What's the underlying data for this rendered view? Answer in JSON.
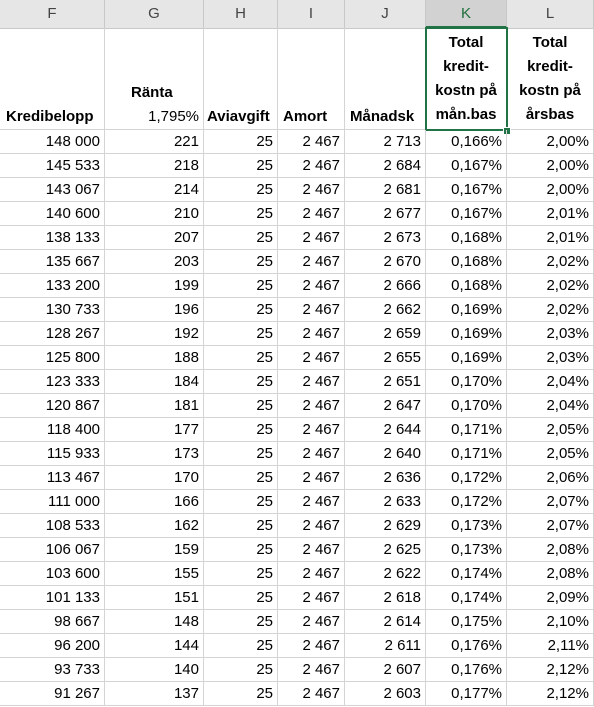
{
  "columns": [
    "F",
    "G",
    "H",
    "I",
    "J",
    "K",
    "L"
  ],
  "header": {
    "kredibelopp": "Kredibelopp",
    "ranta_label": "Ränta",
    "ranta_rate": "1,795%",
    "aviavgift": "Aviavgift",
    "amort": "Amort",
    "manadsk": "Månadsk",
    "k_lines": [
      "Total",
      "kredit-",
      "kostn på",
      "mån.bas"
    ],
    "l_lines": [
      "Total",
      "kredit-",
      "kostn på",
      "årsbas"
    ]
  },
  "rows": [
    [
      "148 000",
      "221",
      "25",
      "2 467",
      "2 713",
      "0,166%",
      "2,00%"
    ],
    [
      "145 533",
      "218",
      "25",
      "2 467",
      "2 684",
      "0,167%",
      "2,00%"
    ],
    [
      "143 067",
      "214",
      "25",
      "2 467",
      "2 681",
      "0,167%",
      "2,00%"
    ],
    [
      "140 600",
      "210",
      "25",
      "2 467",
      "2 677",
      "0,167%",
      "2,01%"
    ],
    [
      "138 133",
      "207",
      "25",
      "2 467",
      "2 673",
      "0,168%",
      "2,01%"
    ],
    [
      "135 667",
      "203",
      "25",
      "2 467",
      "2 670",
      "0,168%",
      "2,02%"
    ],
    [
      "133 200",
      "199",
      "25",
      "2 467",
      "2 666",
      "0,168%",
      "2,02%"
    ],
    [
      "130 733",
      "196",
      "25",
      "2 467",
      "2 662",
      "0,169%",
      "2,02%"
    ],
    [
      "128 267",
      "192",
      "25",
      "2 467",
      "2 659",
      "0,169%",
      "2,03%"
    ],
    [
      "125 800",
      "188",
      "25",
      "2 467",
      "2 655",
      "0,169%",
      "2,03%"
    ],
    [
      "123 333",
      "184",
      "25",
      "2 467",
      "2 651",
      "0,170%",
      "2,04%"
    ],
    [
      "120 867",
      "181",
      "25",
      "2 467",
      "2 647",
      "0,170%",
      "2,04%"
    ],
    [
      "118 400",
      "177",
      "25",
      "2 467",
      "2 644",
      "0,171%",
      "2,05%"
    ],
    [
      "115 933",
      "173",
      "25",
      "2 467",
      "2 640",
      "0,171%",
      "2,05%"
    ],
    [
      "113 467",
      "170",
      "25",
      "2 467",
      "2 636",
      "0,172%",
      "2,06%"
    ],
    [
      "111 000",
      "166",
      "25",
      "2 467",
      "2 633",
      "0,172%",
      "2,07%"
    ],
    [
      "108 533",
      "162",
      "25",
      "2 467",
      "2 629",
      "0,173%",
      "2,07%"
    ],
    [
      "106 067",
      "159",
      "25",
      "2 467",
      "2 625",
      "0,173%",
      "2,08%"
    ],
    [
      "103 600",
      "155",
      "25",
      "2 467",
      "2 622",
      "0,174%",
      "2,08%"
    ],
    [
      "101 133",
      "151",
      "25",
      "2 467",
      "2 618",
      "0,174%",
      "2,09%"
    ],
    [
      "98 667",
      "148",
      "25",
      "2 467",
      "2 614",
      "0,175%",
      "2,10%"
    ],
    [
      "96 200",
      "144",
      "25",
      "2 467",
      "2 611",
      "0,176%",
      "2,11%"
    ],
    [
      "93 733",
      "140",
      "25",
      "2 467",
      "2 607",
      "0,176%",
      "2,12%"
    ],
    [
      "91 267",
      "137",
      "25",
      "2 467",
      "2 603",
      "0,177%",
      "2,12%"
    ]
  ],
  "selected_column": "K"
}
